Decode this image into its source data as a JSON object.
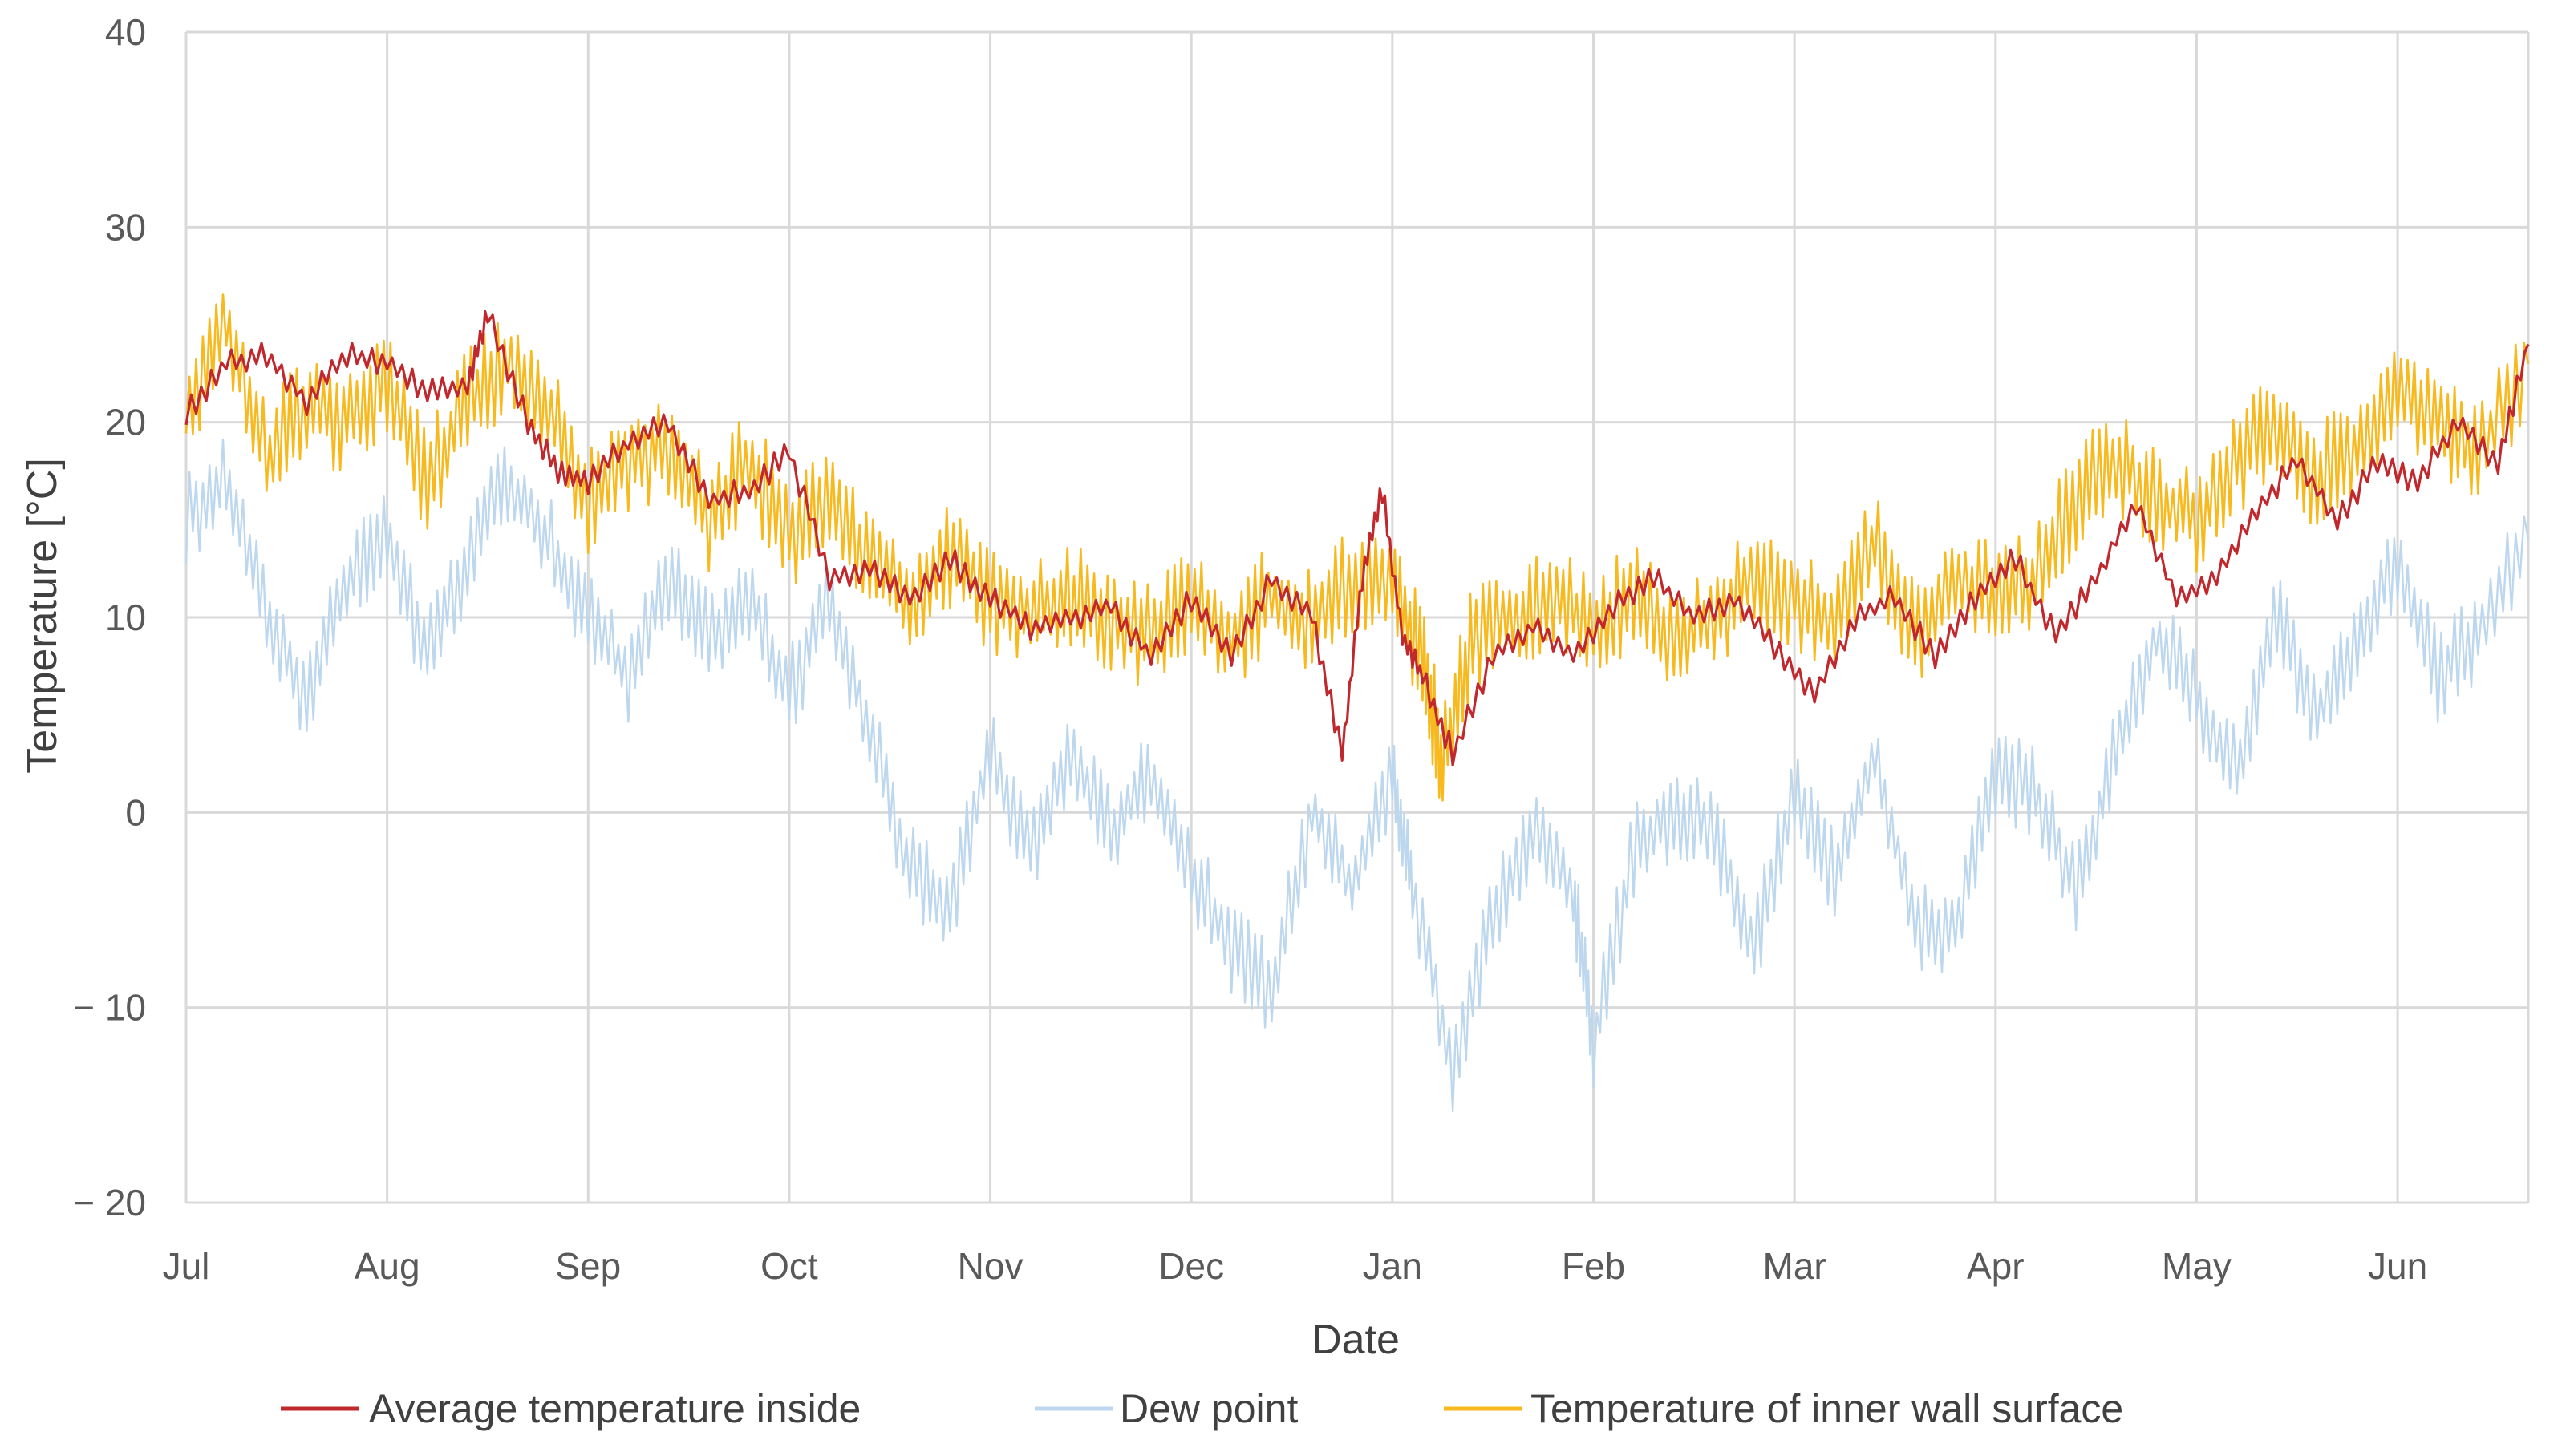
{
  "chart_data": {
    "type": "line",
    "title": "",
    "xlabel": "Date",
    "ylabel": "Temperature [°C]",
    "ylim": [
      -20,
      40
    ],
    "y_ticks": [
      "40",
      "30",
      "20",
      "10",
      "0",
      "− 10",
      "− 20"
    ],
    "y_tick_values": [
      40,
      30,
      20,
      10,
      0,
      -10,
      -20
    ],
    "x_range_months": [
      0,
      11.65
    ],
    "categories": [
      "Jul",
      "Aug",
      "Sep",
      "Oct",
      "Nov",
      "Dec",
      "Jan",
      "Feb",
      "Mar",
      "Apr",
      "May",
      "Jun"
    ],
    "grid": true,
    "legend_position": "bottom",
    "colors": {
      "inside": "#c0282d",
      "dew": "#bdd7ee",
      "wall": "#f7b91e",
      "grid": "#d9d9d9"
    },
    "series": [
      {
        "name": "Average temperature inside",
        "key": "inside",
        "x": [
          0,
          0.2,
          0.4,
          0.6,
          0.8,
          1.0,
          1.2,
          1.4,
          1.5,
          1.7,
          1.85,
          2.0,
          2.2,
          2.4,
          2.6,
          2.8,
          3.0,
          3.2,
          3.4,
          3.6,
          3.8,
          4.0,
          4.2,
          4.4,
          4.6,
          4.8,
          5.0,
          5.2,
          5.4,
          5.6,
          5.75,
          5.85,
          5.95,
          6.05,
          6.15,
          6.3,
          6.5,
          6.7,
          6.9,
          7.1,
          7.3,
          7.5,
          7.7,
          7.9,
          8.1,
          8.3,
          8.5,
          8.7,
          8.9,
          9.1,
          9.3,
          9.5,
          9.7,
          9.9,
          10.1,
          10.3,
          10.5,
          10.7,
          10.9,
          11.1,
          11.3,
          11.5,
          11.65
        ],
        "values": [
          20.5,
          23,
          23.5,
          21,
          23.5,
          23,
          21.5,
          22,
          25.5,
          20,
          17.5,
          17,
          19,
          20,
          16,
          16.5,
          18.5,
          12,
          12.5,
          11,
          13,
          11,
          9.5,
          10,
          10.5,
          8,
          11,
          8,
          12,
          10,
          3,
          12,
          16.5,
          9,
          7,
          3,
          8,
          9.5,
          8,
          10.5,
          12,
          10,
          11,
          8.5,
          6,
          10,
          11,
          8,
          11,
          13,
          9,
          12,
          16,
          11,
          12,
          15.5,
          18,
          15,
          18,
          17,
          20,
          18,
          24
        ]
      },
      {
        "name": "Dew point",
        "key": "dew",
        "x": [
          0,
          0.2,
          0.4,
          0.6,
          0.8,
          1.0,
          1.2,
          1.4,
          1.6,
          1.8,
          2.0,
          2.2,
          2.4,
          2.6,
          2.8,
          3.0,
          3.2,
          3.4,
          3.6,
          3.8,
          4.0,
          4.2,
          4.4,
          4.6,
          4.8,
          5.0,
          5.2,
          5.4,
          5.6,
          5.8,
          6.0,
          6.1,
          6.3,
          6.5,
          6.7,
          6.9,
          7.0,
          7.2,
          7.4,
          7.6,
          7.8,
          8.0,
          8.2,
          8.4,
          8.6,
          8.8,
          9.0,
          9.2,
          9.4,
          9.6,
          9.8,
          10.0,
          10.2,
          10.4,
          10.6,
          10.8,
          11.0,
          11.2,
          11.4,
          11.65
        ],
        "values": [
          15,
          17,
          10,
          6,
          12,
          14,
          8,
          13,
          17,
          14,
          10,
          7,
          12,
          9,
          11,
          6,
          11,
          4,
          -3,
          -5,
          3,
          -2,
          3,
          -1,
          2,
          -3,
          -7,
          -9,
          0,
          -4,
          2,
          -4,
          -13,
          -5,
          -1,
          -4,
          -12,
          -2,
          0,
          -1,
          -7,
          1,
          -3,
          3,
          -6,
          -6,
          2,
          1,
          -4,
          3,
          9,
          6,
          2,
          10,
          5,
          9,
          13,
          7,
          9,
          14
        ]
      },
      {
        "name": "Temperature of inner wall surface",
        "key": "wall",
        "x": [
          0,
          0.2,
          0.4,
          0.6,
          0.8,
          1.0,
          1.2,
          1.4,
          1.6,
          1.8,
          2.0,
          2.2,
          2.4,
          2.6,
          2.8,
          3.0,
          3.2,
          3.4,
          3.6,
          3.8,
          4.0,
          4.2,
          4.4,
          4.6,
          4.8,
          5.0,
          5.2,
          5.4,
          5.6,
          5.8,
          6.0,
          6.15,
          6.25,
          6.4,
          6.6,
          6.8,
          7.0,
          7.2,
          7.4,
          7.6,
          7.8,
          8.0,
          8.2,
          8.4,
          8.6,
          8.8,
          9.0,
          9.2,
          9.4,
          9.6,
          9.8,
          10.0,
          10.2,
          10.4,
          10.6,
          10.8,
          11.0,
          11.2,
          11.4,
          11.65
        ],
        "values": [
          21,
          25,
          18,
          21,
          20,
          22,
          17,
          21,
          23,
          21,
          16,
          18,
          19,
          15,
          18,
          14,
          16,
          13,
          11,
          13,
          11,
          10,
          11,
          10,
          9,
          11,
          9,
          11,
          10,
          12,
          12,
          8,
          2.5,
          9,
          10,
          11,
          9.5,
          11,
          9,
          10,
          12,
          11,
          10,
          14,
          9,
          12,
          11,
          12,
          16,
          18,
          16,
          15,
          18,
          20,
          17,
          19,
          22,
          20,
          18,
          23
        ]
      }
    ]
  }
}
